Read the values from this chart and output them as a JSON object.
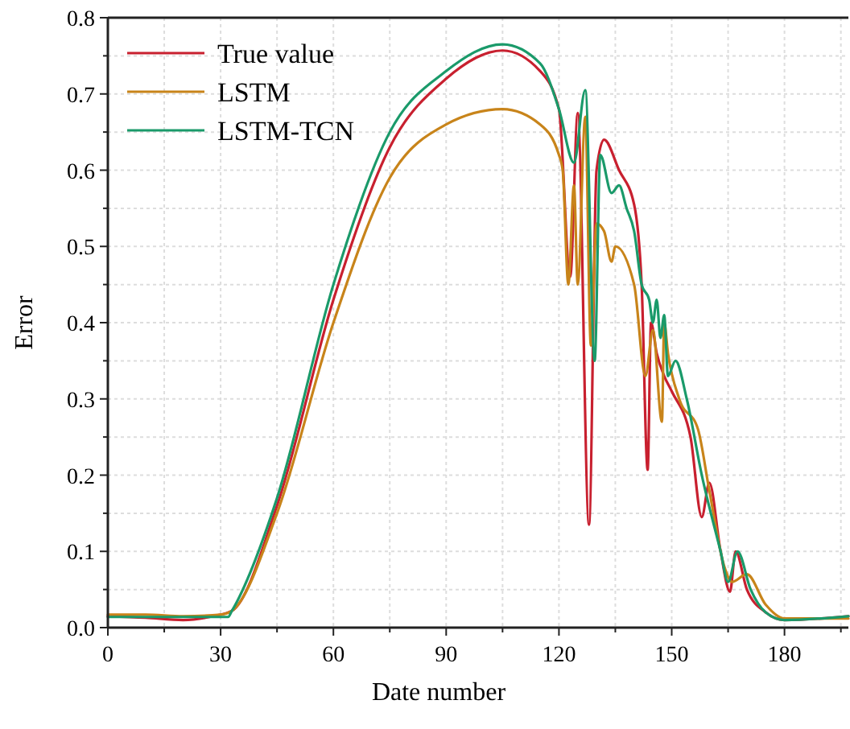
{
  "chart_data": {
    "type": "line",
    "xlabel": "Date number",
    "ylabel": "Error",
    "xlim": [
      0,
      197
    ],
    "ylim": [
      0,
      0.8
    ],
    "xticks": [
      0,
      {
        "value": 15,
        "label": null
      },
      30,
      {
        "value": 45,
        "label": null
      },
      60,
      {
        "value": 75,
        "label": null
      },
      90,
      {
        "value": 105,
        "label": null
      },
      120,
      {
        "value": 135,
        "label": null
      },
      150,
      {
        "value": 165,
        "label": null
      },
      180,
      {
        "value": 195,
        "label": null
      }
    ],
    "yticks": [
      {
        "value": 0,
        "label": "0.0"
      },
      {
        "value": 0.05,
        "label": null
      },
      0.1,
      {
        "value": 0.15,
        "label": null
      },
      0.2,
      {
        "value": 0.25,
        "label": null
      },
      0.3,
      {
        "value": 0.35,
        "label": null
      },
      0.4,
      {
        "value": 0.45,
        "label": null
      },
      0.5,
      {
        "value": 0.55,
        "label": null
      },
      0.6,
      {
        "value": 0.65,
        "label": null
      },
      0.7,
      {
        "value": 0.75,
        "label": null
      },
      0.8
    ],
    "grid": true,
    "legend": "top left",
    "line_style": "solid",
    "marker": "none",
    "series": [
      {
        "name": "True value",
        "color": "#c8202f",
        "x": [
          0,
          10,
          20,
          28,
          33,
          45,
          60,
          75,
          90,
          105,
          115,
          120,
          123,
          125,
          128,
          130,
          132,
          136,
          140,
          142,
          143.6,
          144.5,
          146,
          148,
          150,
          155,
          158,
          160,
          163,
          165.5,
          167,
          170,
          175,
          180,
          197
        ],
        "values": [
          0.015,
          0.013,
          0.01,
          0.015,
          0.022,
          0.16,
          0.43,
          0.63,
          0.72,
          0.757,
          0.73,
          0.68,
          0.46,
          0.675,
          0.135,
          0.6,
          0.64,
          0.6,
          0.555,
          0.45,
          0.207,
          0.4,
          0.36,
          0.33,
          0.31,
          0.25,
          0.145,
          0.19,
          0.1,
          0.047,
          0.1,
          0.05,
          0.02,
          0.01,
          0.015
        ]
      },
      {
        "name": "LSTM",
        "color": "#c8841a",
        "x": [
          0,
          10,
          20,
          30,
          33,
          45,
          60,
          75,
          90,
          105,
          115,
          120,
          121,
          122.5,
          124,
          125,
          127,
          128.5,
          130,
          132,
          134,
          135,
          140,
          143,
          145,
          147.4,
          148,
          149,
          152,
          157,
          160,
          164,
          166,
          170,
          175,
          180,
          197
        ],
        "values": [
          0.017,
          0.017,
          0.015,
          0.017,
          0.022,
          0.15,
          0.4,
          0.59,
          0.66,
          0.68,
          0.66,
          0.62,
          0.6,
          0.45,
          0.58,
          0.45,
          0.67,
          0.37,
          0.53,
          0.52,
          0.48,
          0.5,
          0.45,
          0.33,
          0.39,
          0.27,
          0.4,
          0.36,
          0.3,
          0.26,
          0.18,
          0.08,
          0.06,
          0.07,
          0.03,
          0.012,
          0.012
        ]
      },
      {
        "name": "LSTM-TCN",
        "color": "#1a9a6a",
        "x": [
          0,
          10,
          20,
          32,
          33,
          45,
          60,
          75,
          90,
          105,
          115,
          120,
          124,
          127,
          129.5,
          131,
          134,
          136,
          138,
          140,
          142,
          144,
          145,
          146,
          147,
          148,
          149,
          151,
          154,
          158,
          163,
          165,
          167.5,
          171,
          175,
          180,
          197
        ],
        "values": [
          0.014,
          0.014,
          0.014,
          0.014,
          0.022,
          0.17,
          0.45,
          0.65,
          0.73,
          0.765,
          0.74,
          0.68,
          0.61,
          0.705,
          0.35,
          0.62,
          0.57,
          0.58,
          0.55,
          0.52,
          0.45,
          0.43,
          0.4,
          0.43,
          0.38,
          0.41,
          0.33,
          0.35,
          0.3,
          0.2,
          0.1,
          0.06,
          0.1,
          0.05,
          0.02,
          0.01,
          0.015
        ]
      }
    ]
  }
}
